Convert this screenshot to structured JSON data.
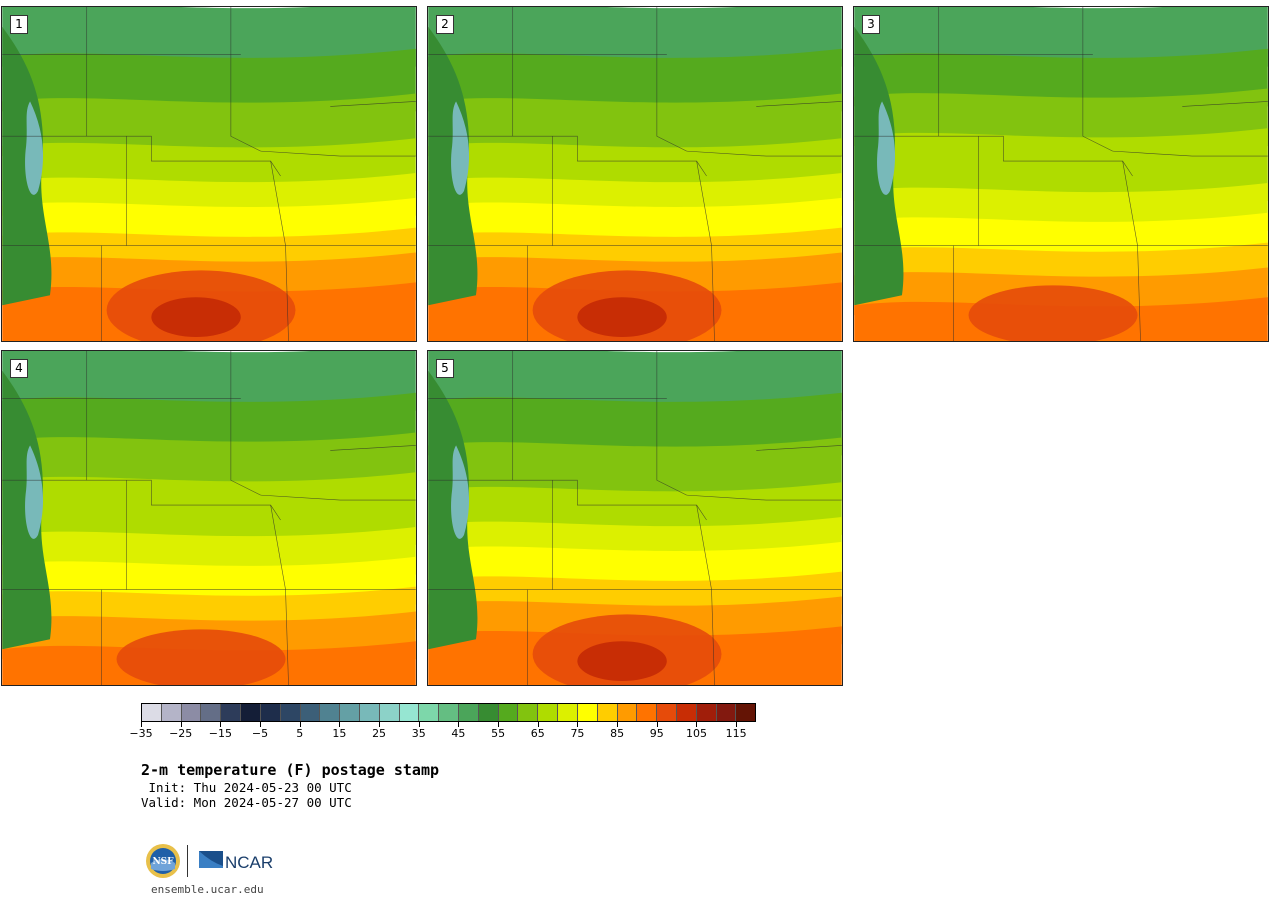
{
  "title": "2-m temperature (F) postage stamp",
  "init_label": " Init: Thu 2024-05-23 00 UTC",
  "valid_label": "Valid: Mon 2024-05-27 00 UTC",
  "site": "ensemble.ucar.edu",
  "logos": {
    "nsf": "NSF",
    "ncar": "NCAR"
  },
  "members": [
    {
      "label": "1",
      "regime": "hot"
    },
    {
      "label": "2",
      "regime": "hot"
    },
    {
      "label": "3",
      "regime": "warm"
    },
    {
      "label": "4",
      "regime": "warm"
    },
    {
      "label": "5",
      "regime": "hot"
    }
  ],
  "colorbar": {
    "colors": [
      "#dcdce6",
      "#b4b4c8",
      "#8c8ca5",
      "#646e87",
      "#2d3c5a",
      "#141e37",
      "#1e2d4b",
      "#2d4664",
      "#3c5f78",
      "#508291",
      "#64a0a5",
      "#78b9b9",
      "#8cd2c8",
      "#96e6d2",
      "#7dd7aa",
      "#64be82",
      "#4ba55a",
      "#378c32",
      "#55aa1e",
      "#82c30f",
      "#afdc00",
      "#dcf000",
      "#ffff00",
      "#ffcd00",
      "#ff9b00",
      "#ff7300",
      "#e64b0a",
      "#c82d05",
      "#a01e0a",
      "#82190f",
      "#641405"
    ],
    "tick_labels": [
      "−35",
      "−25",
      "−15",
      "−5",
      "5",
      "15",
      "25",
      "35",
      "45",
      "55",
      "65",
      "75",
      "85",
      "95",
      "105",
      "115"
    ],
    "tick_values": [
      -35,
      -25,
      -15,
      -5,
      5,
      15,
      25,
      35,
      45,
      55,
      65,
      75,
      85,
      95,
      105,
      115
    ],
    "min": -35,
    "max": 120
  }
}
